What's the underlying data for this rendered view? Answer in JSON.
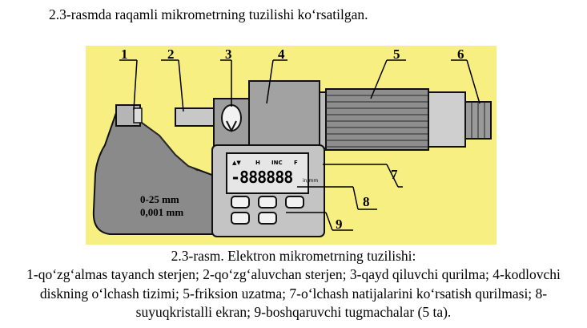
{
  "intro_text": "2.3-rasmda raqamli mikrometrning tuzilishi ko‘rsatilgan.",
  "figure": {
    "background_color": "#f7ef82",
    "callouts": [
      "1",
      "2",
      "3",
      "4",
      "5",
      "6",
      "7",
      "8",
      "9"
    ],
    "display": {
      "indicators": [
        "▲▼",
        "H",
        "INC",
        "F"
      ],
      "readout": "-888888",
      "unit": "in/mm"
    },
    "frame_text": [
      "0-25 mm",
      "0,001 mm"
    ],
    "button_count": 5
  },
  "caption": {
    "title": "2.3-rasm. Elektron mikrometrning tuzilishi:",
    "body": "1-qo‘zg‘almas tayanch sterjen; 2-qo‘zg‘aluvchan sterjen; 3-qayd qiluvchi qurilma; 4-kodlovchi diskning o‘lchash tizimi; 5-friksion uzatma; 7-o‘lchash natijalarini ko‘rsatish qurilmasi; 8-suyuqkristalli ekran; 9-boshqaruvchi tugmachalar (5 ta)."
  }
}
